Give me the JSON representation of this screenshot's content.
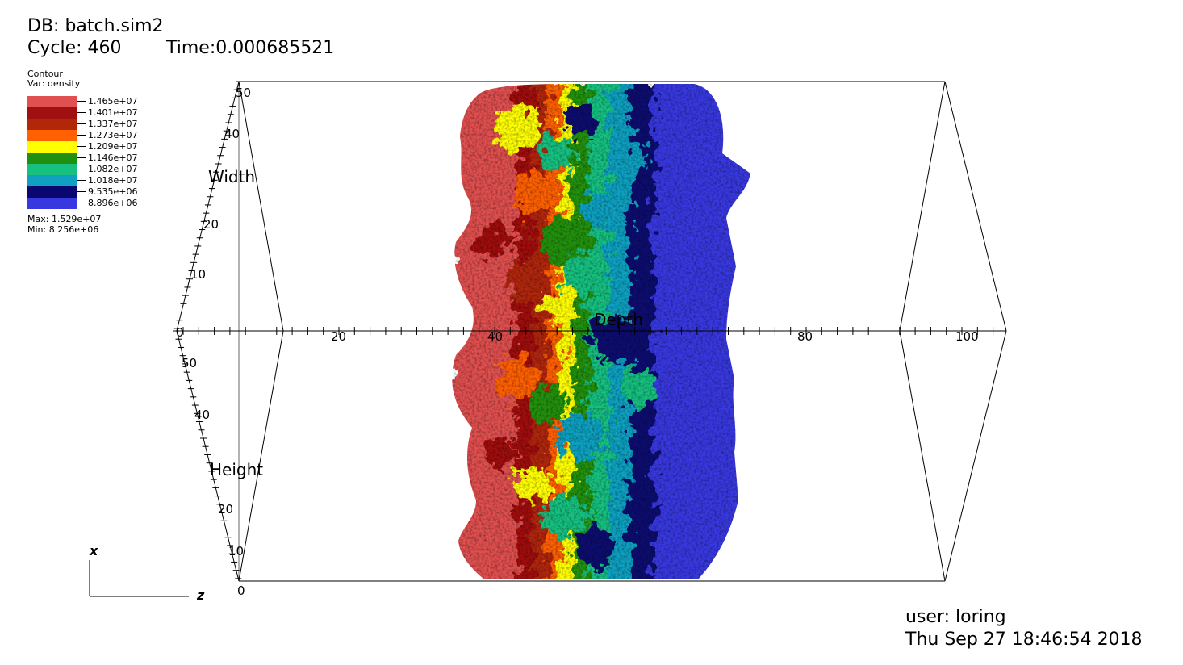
{
  "header": {
    "db": "DB: batch.sim2",
    "cycle": "Cycle: 460",
    "time": "Time:0.000685521"
  },
  "legend": {
    "plot": "Contour",
    "var": "Var: density",
    "levels": [
      {
        "label": "1.465e+07",
        "color": "#e05050"
      },
      {
        "label": "1.401e+07",
        "color": "#a01010"
      },
      {
        "label": "1.337e+07",
        "color": "#b02808"
      },
      {
        "label": "1.273e+07",
        "color": "#ff6000"
      },
      {
        "label": "1.209e+07",
        "color": "#ffff00"
      },
      {
        "label": "1.146e+07",
        "color": "#209010"
      },
      {
        "label": "1.082e+07",
        "color": "#18c080"
      },
      {
        "label": "1.018e+07",
        "color": "#10a0c0"
      },
      {
        "label": "9.535e+06",
        "color": "#080870"
      },
      {
        "label": "8.896e+06",
        "color": "#3838e0"
      }
    ],
    "max": "Max: 1.529e+07",
    "min": "Min: 8.256e+06"
  },
  "axes": {
    "width_title": "Width",
    "height_title": "Height",
    "depth_title": "Depth",
    "width_ticks": [
      "50",
      "40",
      "20",
      "10",
      "0"
    ],
    "height_ticks": [
      "50",
      "40",
      "20",
      "10",
      "0"
    ],
    "depth_ticks": [
      "20",
      "40",
      "80",
      "100"
    ]
  },
  "triad": {
    "x": "x",
    "z": "z"
  },
  "footer": {
    "user": "user: loring",
    "date": "Thu Sep 27 18:46:54 2018"
  }
}
